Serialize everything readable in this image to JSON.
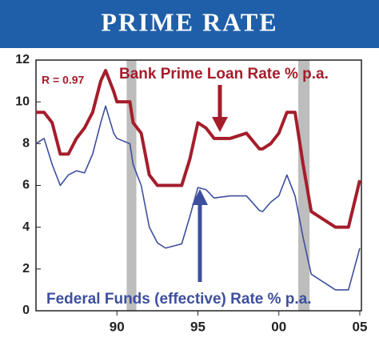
{
  "chart_data": {
    "type": "line",
    "title": "PRIME RATE",
    "annotation": "R = 0.97",
    "x": [
      1985,
      1985.5,
      1986,
      1986.5,
      1987,
      1987.5,
      1988,
      1988.5,
      1989,
      1989.3,
      1989.8,
      1990,
      1990.8,
      1991,
      1991.5,
      1992,
      1992.5,
      1993,
      1994,
      1994.5,
      1995,
      1995.5,
      1996,
      1997,
      1998,
      1998.8,
      1999,
      1999.5,
      2000,
      2000.5,
      2001,
      2001.5,
      2002,
      2003,
      2003.5,
      2004.3,
      2005
    ],
    "series": [
      {
        "name": "Bank Prime Loan Rate % p.a.",
        "color": "#a51d2b",
        "values": [
          9.5,
          9.5,
          9,
          7.5,
          7.5,
          8.25,
          8.75,
          9.5,
          11,
          11.5,
          10.5,
          10,
          10,
          9,
          8.5,
          6.5,
          6,
          6,
          6,
          7.25,
          9,
          8.75,
          8.25,
          8.25,
          8.5,
          7.75,
          7.75,
          8,
          8.5,
          9.5,
          9.5,
          7,
          4.75,
          4.25,
          4,
          4,
          6.25
        ]
      },
      {
        "name": "Federal Funds (effective) Rate % p.a.",
        "color": "#3d4f9e",
        "values": [
          8,
          8.25,
          7,
          6,
          6.5,
          6.7,
          6.6,
          7.5,
          9,
          9.8,
          8.5,
          8.25,
          8,
          7,
          6,
          4,
          3.25,
          3,
          3.2,
          4.5,
          5.9,
          5.8,
          5.4,
          5.5,
          5.5,
          4.8,
          4.75,
          5.2,
          5.5,
          6.5,
          5.5,
          3.5,
          1.75,
          1.25,
          1,
          1,
          3
        ]
      }
    ],
    "shaded": [
      [
        1990.6,
        1991.2
      ],
      [
        2001.2,
        2001.9
      ]
    ],
    "xlim": [
      1985,
      2005.1
    ],
    "ylim": [
      0,
      12
    ],
    "xticks": [
      {
        "value": 1990,
        "label": "90"
      },
      {
        "value": 1995,
        "label": "95"
      },
      {
        "value": 2000,
        "label": "00"
      },
      {
        "value": 2005,
        "label": "05"
      }
    ],
    "yticks": [
      0,
      2,
      4,
      6,
      8,
      10,
      12
    ]
  }
}
